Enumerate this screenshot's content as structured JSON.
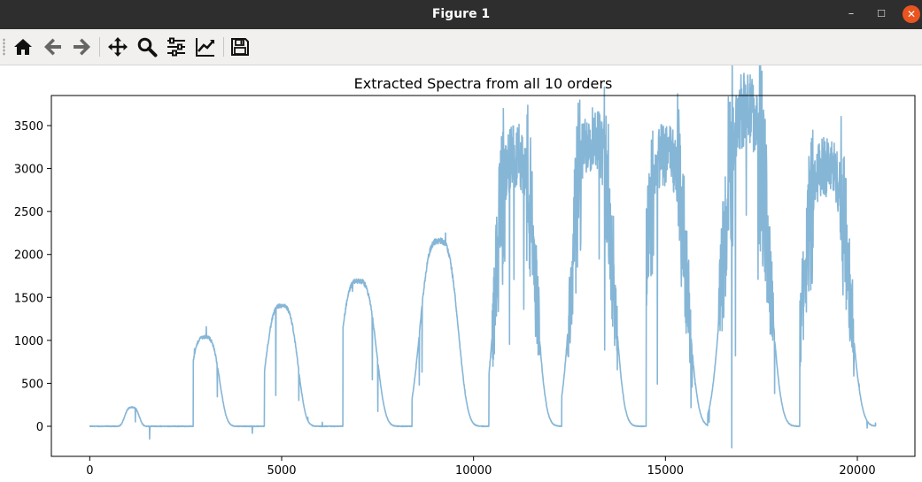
{
  "window": {
    "title": "Figure 1",
    "minimize_glyph": "–",
    "maximize_glyph": "☐",
    "close_glyph": "✕"
  },
  "toolbar": {
    "buttons": [
      {
        "name": "home-icon"
      },
      {
        "name": "back-arrow-icon"
      },
      {
        "name": "forward-arrow-icon"
      },
      {
        "name": "pan-icon"
      },
      {
        "name": "zoom-icon"
      },
      {
        "name": "subplots-icon"
      },
      {
        "name": "edit-curve-icon"
      },
      {
        "name": "save-icon"
      }
    ]
  },
  "chart_data": {
    "type": "line",
    "title": "Extracted Spectra from all 10 orders",
    "xlabel": "",
    "ylabel": "",
    "xlim": [
      -1000,
      21500
    ],
    "ylim": [
      -350,
      3850
    ],
    "xticks": [
      0,
      5000,
      10000,
      15000,
      20000
    ],
    "yticks": [
      0,
      500,
      1000,
      1500,
      2000,
      2500,
      3000,
      3500
    ],
    "grid": false,
    "line_color": "#86b6d6",
    "orders": [
      {
        "center": 1100,
        "peak": 220,
        "width": 190,
        "start": 0,
        "end": 2700
      },
      {
        "center": 3000,
        "peak": 1040,
        "width": 380,
        "start": 2700,
        "end": 4550
      },
      {
        "center": 5000,
        "peak": 1400,
        "width": 420,
        "start": 4550,
        "end": 6600
      },
      {
        "center": 7000,
        "peak": 1690,
        "width": 470,
        "start": 6600,
        "end": 8400
      },
      {
        "center": 9100,
        "peak": 2160,
        "width": 500,
        "start": 8400,
        "end": 10400
      },
      {
        "center": 11100,
        "peak": 3150,
        "width": 520,
        "start": 10400,
        "end": 12300
      },
      {
        "center": 13100,
        "peak": 3380,
        "width": 540,
        "start": 12300,
        "end": 14500
      },
      {
        "center": 15000,
        "peak": 3150,
        "width": 560,
        "start": 14500,
        "end": 16100
      },
      {
        "center": 17100,
        "peak": 3680,
        "width": 600,
        "start": 16100,
        "end": 18500
      },
      {
        "center": 19200,
        "peak": 3030,
        "width": 600,
        "start": 18500,
        "end": 20500
      }
    ],
    "x_max": 20480
  }
}
